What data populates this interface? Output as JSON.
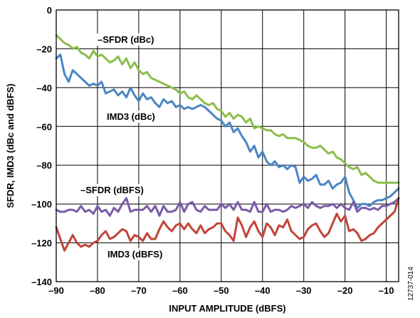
{
  "figure_id": "12737-014",
  "chart_data": {
    "type": "line",
    "xlabel": "INPUT AMPLITUDE (dBFS)",
    "ylabel": "SFDR, IMD3 (dBc and dBFS)",
    "xlim": [
      -90,
      -7
    ],
    "ylim": [
      -140,
      0
    ],
    "xticks": [
      -90,
      -80,
      -70,
      -60,
      -50,
      -40,
      -30,
      -20,
      -10
    ],
    "yticks": [
      0,
      -20,
      -40,
      -60,
      -80,
      -100,
      -120,
      -140
    ],
    "grid": true,
    "annotations": [
      {
        "text": "–SFDR (dBc)",
        "series": "–SFDR (dBc)"
      },
      {
        "text": "IMD3 (dBc)",
        "series": "IMD3 (dBc)"
      },
      {
        "text": "–SFDR (dBFS)",
        "series": "–SFDR (dBFS)"
      },
      {
        "text": "IMD3 (dBFS)",
        "series": "IMD3 (dBFS)"
      }
    ],
    "series": [
      {
        "name": "–SFDR (dBc)",
        "color": "#8cbd4a",
        "x": [
          -90,
          -89,
          -88,
          -87,
          -86,
          -85,
          -84,
          -83,
          -82,
          -81,
          -80,
          -79,
          -78,
          -77,
          -76,
          -75,
          -74,
          -73,
          -72,
          -71,
          -70,
          -69,
          -68,
          -67,
          -66,
          -65,
          -64,
          -63,
          -62,
          -61,
          -60,
          -59,
          -58,
          -57,
          -56,
          -55,
          -54,
          -53,
          -52,
          -51,
          -50,
          -49,
          -48,
          -47,
          -46,
          -45,
          -44,
          -43,
          -42,
          -41,
          -40,
          -39,
          -38,
          -37,
          -36,
          -35,
          -34,
          -33,
          -32,
          -31,
          -30,
          -29,
          -28,
          -27,
          -26,
          -25,
          -24,
          -23,
          -22,
          -21,
          -20,
          -19,
          -18,
          -17,
          -16,
          -15,
          -14,
          -13,
          -12,
          -11,
          -10,
          -9,
          -8,
          -7
        ],
        "y": [
          -13,
          -15,
          -17,
          -18,
          -20,
          -19,
          -22,
          -23,
          -25,
          -21,
          -24,
          -23,
          -25,
          -27,
          -26,
          -24,
          -28,
          -25,
          -30,
          -27,
          -31,
          -33,
          -32,
          -35,
          -36,
          -37,
          -38,
          -39,
          -40,
          -41,
          -43,
          -42,
          -45,
          -46,
          -44,
          -46,
          -48,
          -49,
          -48,
          -51,
          -52,
          -55,
          -53,
          -56,
          -54,
          -55,
          -58,
          -56,
          -61,
          -60,
          -61,
          -62,
          -62,
          -64,
          -65,
          -64,
          -66,
          -66,
          -66,
          -67,
          -68,
          -70,
          -71,
          -71,
          -70,
          -72,
          -74,
          -73,
          -76,
          -77,
          -79,
          -81,
          -82,
          -81,
          -85,
          -84,
          -86,
          -88,
          -89,
          -89,
          -89,
          -89,
          -89,
          -89
        ]
      },
      {
        "name": "IMD3 (dBc)",
        "color": "#4a86c4",
        "x": [
          -90,
          -89,
          -88,
          -87,
          -86,
          -85,
          -84,
          -83,
          -82,
          -81,
          -80,
          -79,
          -78,
          -77,
          -76,
          -75,
          -74,
          -73,
          -72,
          -71,
          -70,
          -69,
          -68,
          -67,
          -66,
          -65,
          -64,
          -63,
          -62,
          -61,
          -60,
          -59,
          -58,
          -57,
          -56,
          -55,
          -54,
          -53,
          -52,
          -51,
          -50,
          -49,
          -48,
          -47,
          -46,
          -45,
          -44,
          -43,
          -42,
          -41,
          -40,
          -39,
          -38,
          -37,
          -36,
          -35,
          -34,
          -33,
          -32,
          -31,
          -30,
          -29,
          -28,
          -27,
          -26,
          -25,
          -24,
          -23,
          -22,
          -21,
          -20,
          -19,
          -18,
          -17,
          -16,
          -15,
          -14,
          -13,
          -12,
          -11,
          -10,
          -9,
          -8,
          -7
        ],
        "y": [
          -25,
          -23,
          -33,
          -37,
          -31,
          -33,
          -35,
          -37,
          -39,
          -38,
          -39,
          -37,
          -43,
          -42,
          -41,
          -44,
          -42,
          -45,
          -40,
          -44,
          -47,
          -43,
          -46,
          -45,
          -48,
          -50,
          -46,
          -48,
          -47,
          -50,
          -49,
          -51,
          -50,
          -51,
          -50,
          -49,
          -50,
          -52,
          -54,
          -56,
          -57,
          -60,
          -58,
          -63,
          -61,
          -65,
          -68,
          -73,
          -70,
          -76,
          -73,
          -78,
          -80,
          -78,
          -81,
          -80,
          -82,
          -80,
          -81,
          -89,
          -86,
          -88,
          -87,
          -85,
          -90,
          -90,
          -88,
          -92,
          -90,
          -89,
          -86,
          -94,
          -98,
          -102,
          -100,
          -100,
          -101,
          -99,
          -98,
          -98,
          -97,
          -96,
          -94,
          -92
        ]
      },
      {
        "name": "–SFDR (dBFS)",
        "color": "#7a5ba8",
        "x": [
          -90,
          -89,
          -88,
          -87,
          -86,
          -85,
          -84,
          -83,
          -82,
          -81,
          -80,
          -79,
          -78,
          -77,
          -76,
          -75,
          -74,
          -73,
          -72,
          -71,
          -70,
          -69,
          -68,
          -67,
          -66,
          -65,
          -64,
          -63,
          -62,
          -61,
          -60,
          -59,
          -58,
          -57,
          -56,
          -55,
          -54,
          -53,
          -52,
          -51,
          -50,
          -49,
          -48,
          -47,
          -46,
          -45,
          -44,
          -43,
          -42,
          -41,
          -40,
          -39,
          -38,
          -37,
          -36,
          -35,
          -34,
          -33,
          -32,
          -31,
          -30,
          -29,
          -28,
          -27,
          -26,
          -25,
          -24,
          -23,
          -22,
          -21,
          -20,
          -19,
          -18,
          -17,
          -16,
          -15,
          -14,
          -13,
          -12,
          -11,
          -10,
          -9,
          -8,
          -7
        ],
        "y": [
          -103,
          -104,
          -104,
          -103,
          -103,
          -104,
          -101,
          -104,
          -103,
          -105,
          -101,
          -104,
          -103,
          -106,
          -102,
          -104,
          -100,
          -97,
          -104,
          -103,
          -103,
          -103,
          -101,
          -104,
          -101,
          -106,
          -101,
          -104,
          -104,
          -103,
          -99,
          -104,
          -100,
          -99,
          -103,
          -104,
          -101,
          -103,
          -103,
          -103,
          -100,
          -102,
          -100,
          -103,
          -99,
          -103,
          -103,
          -104,
          -99,
          -104,
          -104,
          -100,
          -104,
          -103,
          -103,
          -104,
          -103,
          -101,
          -102,
          -101,
          -100,
          -102,
          -99,
          -101,
          -102,
          -101,
          -101,
          -100,
          -102,
          -100,
          -102,
          -103,
          -99,
          -104,
          -102,
          -102,
          -103,
          -102,
          -103,
          -101,
          -101,
          -100,
          -99,
          -97
        ]
      },
      {
        "name": "IMD3 (dBFS)",
        "color": "#c1453a",
        "x": [
          -90,
          -89,
          -88,
          -87,
          -86,
          -85,
          -84,
          -83,
          -82,
          -81,
          -80,
          -79,
          -78,
          -77,
          -76,
          -75,
          -74,
          -73,
          -72,
          -71,
          -70,
          -69,
          -68,
          -67,
          -66,
          -65,
          -64,
          -63,
          -62,
          -61,
          -60,
          -59,
          -58,
          -57,
          -56,
          -55,
          -54,
          -53,
          -52,
          -51,
          -50,
          -49,
          -48,
          -47,
          -46,
          -45,
          -44,
          -43,
          -42,
          -41,
          -40,
          -39,
          -38,
          -37,
          -36,
          -35,
          -34,
          -33,
          -32,
          -31,
          -30,
          -29,
          -28,
          -27,
          -26,
          -25,
          -24,
          -23,
          -22,
          -21,
          -20,
          -19,
          -18,
          -17,
          -16,
          -15,
          -14,
          -13,
          -12,
          -11,
          -10,
          -9,
          -8,
          -7
        ],
        "y": [
          -112,
          -118,
          -124,
          -120,
          -116,
          -120,
          -122,
          -121,
          -122,
          -120,
          -119,
          -116,
          -114,
          -118,
          -117,
          -115,
          -113,
          -114,
          -119,
          -116,
          -117,
          -119,
          -115,
          -118,
          -118,
          -113,
          -109,
          -112,
          -114,
          -111,
          -110,
          -113,
          -110,
          -113,
          -115,
          -111,
          -115,
          -113,
          -112,
          -110,
          -110,
          -114,
          -116,
          -119,
          -107,
          -111,
          -117,
          -112,
          -109,
          -114,
          -117,
          -110,
          -112,
          -116,
          -111,
          -112,
          -108,
          -114,
          -116,
          -118,
          -117,
          -113,
          -111,
          -110,
          -114,
          -117,
          -115,
          -110,
          -105,
          -109,
          -106,
          -114,
          -113,
          -115,
          -119,
          -118,
          -116,
          -115,
          -112,
          -110,
          -108,
          -106,
          -104,
          -97
        ]
      }
    ]
  }
}
